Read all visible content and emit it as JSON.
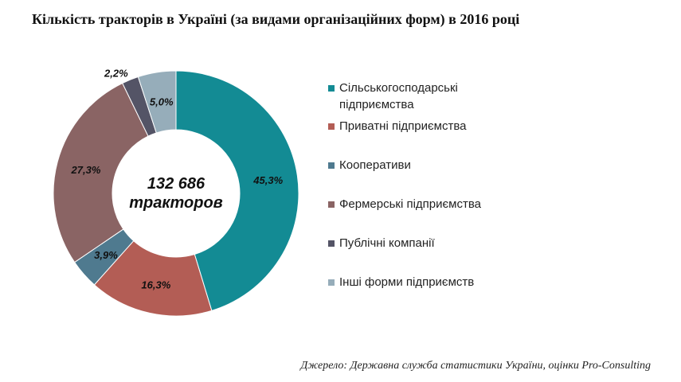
{
  "title": "Кількість тракторів в Україні (за видами організаційних форм) в 2016 році",
  "source": "Джерело: Державна служба статистики України, оцінки Pro-Consulting",
  "chart_data": {
    "type": "pie",
    "donut": true,
    "center_label": [
      "132 686",
      "тракторов"
    ],
    "legend_position": "right",
    "series": [
      {
        "name": "Сільськогосподарські підприємства",
        "value": 45.3,
        "label": "45,3%",
        "color": "#138b94"
      },
      {
        "name": "Приватні підприємства",
        "value": 16.3,
        "label": "16,3%",
        "color": "#b35d55"
      },
      {
        "name": "Кооперативи",
        "value": 3.9,
        "label": "3,9%",
        "color": "#4f7a8f"
      },
      {
        "name": "Фермерські підприємства",
        "value": 27.3,
        "label": "27,3%",
        "color": "#8a6464"
      },
      {
        "name": "Публічні компанії",
        "value": 2.2,
        "label": "2,2%",
        "color": "#545466"
      },
      {
        "name": "Інші форми підприємств",
        "value": 5.0,
        "label": "5,0%",
        "color": "#96adba"
      }
    ]
  }
}
